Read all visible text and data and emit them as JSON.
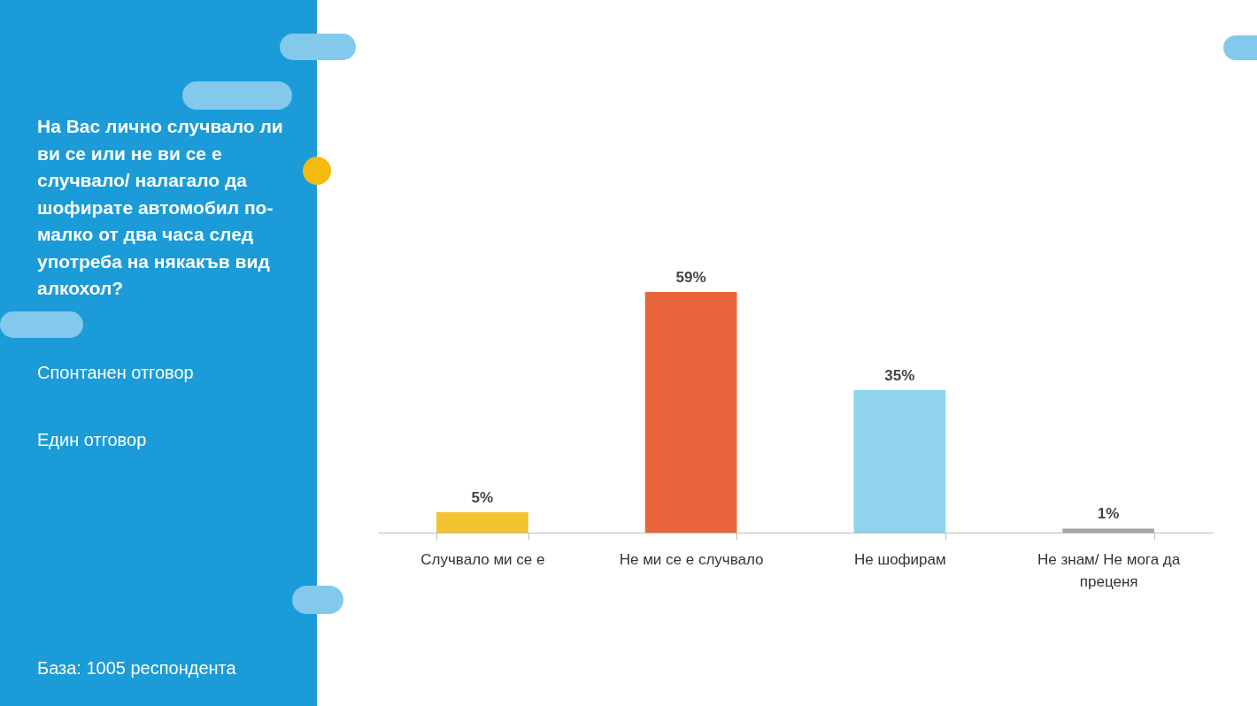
{
  "chart_data": {
    "type": "bar",
    "title": "На Вас лично случвало ли ви се или не ви се е случвало/ налагало да шофирате автомобил по-малко от два часа след употреба на някакъв вид алкохол?",
    "subtitle": "Спонтанен отговор",
    "annotations": [
      "Един отговор",
      "База:  1005 респондента"
    ],
    "categories": [
      "Случвало ми се е",
      "Не ми се е случвало",
      "Не шофирам",
      "Не знам/ Не мога да преценя"
    ],
    "values": [
      5,
      59,
      35,
      1
    ],
    "colors": [
      "#f2c230",
      "#e8653d",
      "#8fd3ef",
      "#a6a6a6"
    ],
    "value_labels": [
      "5%",
      "59%",
      "35%",
      "1%"
    ]
  }
}
